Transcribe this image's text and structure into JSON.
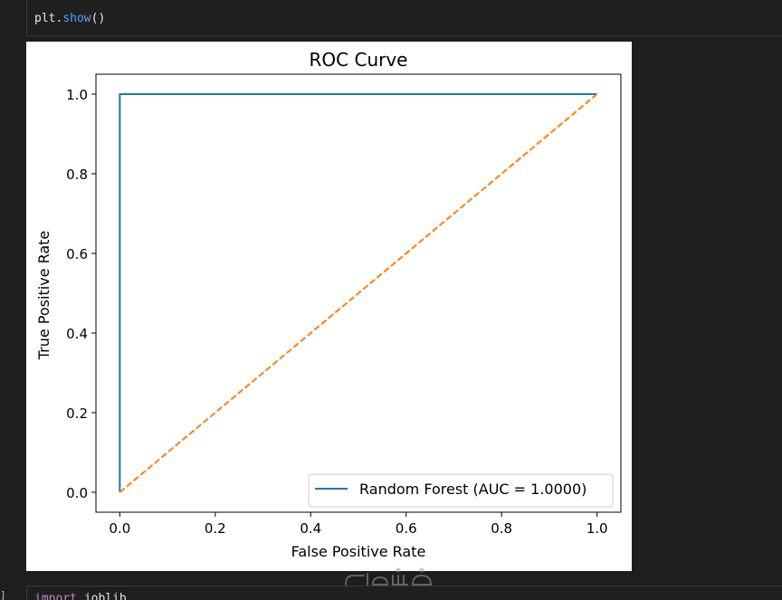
{
  "notebook": {
    "top_cell": {
      "object": "plt",
      "dot": ".",
      "method": "show",
      "parens": "()"
    },
    "bottom_cell": {
      "exec_count": "]",
      "keyword": "import",
      "module": "joblib"
    }
  },
  "colors": {
    "roc_line": "#1f77b4",
    "diagonal_line": "#ff7f0e"
  },
  "chart_data": {
    "type": "line",
    "title": "ROC Curve",
    "xlabel": "False Positive Rate",
    "ylabel": "True Positive Rate",
    "xlim": [
      -0.05,
      1.05
    ],
    "ylim": [
      -0.05,
      1.05
    ],
    "xticks": [
      "0.0",
      "0.2",
      "0.4",
      "0.6",
      "0.8",
      "1.0"
    ],
    "yticks": [
      "0.0",
      "0.2",
      "0.4",
      "0.6",
      "0.8",
      "1.0"
    ],
    "grid": false,
    "legend_position": "lower-right",
    "series": [
      {
        "name": "Random Forest (AUC = 1.0000)",
        "style": "solid",
        "x": [
          0.0,
          0.0,
          1.0
        ],
        "y": [
          0.0,
          1.0,
          1.0
        ]
      },
      {
        "style": "dashed",
        "x": [
          0.0,
          1.0
        ],
        "y": [
          0.0,
          1.0
        ]
      }
    ]
  }
}
